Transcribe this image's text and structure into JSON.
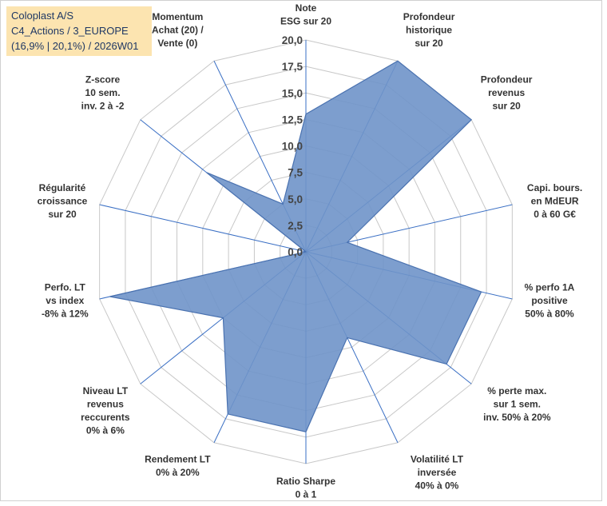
{
  "info": {
    "line1": "Coloplast A/S",
    "line2": "C4_Actions / 3_EUROPE",
    "line3": "(16,9% | 20,1%) / 2026W01"
  },
  "chart_data": {
    "type": "radar",
    "rmin": 0,
    "rmax": 20,
    "ticks": [
      "0,0",
      "2,5",
      "5,0",
      "7,5",
      "10,0",
      "12,5",
      "15,0",
      "17,5",
      "20,0"
    ],
    "categories": [
      [
        "Note",
        "ESG sur 20"
      ],
      [
        "Profondeur",
        "historique",
        "sur 20"
      ],
      [
        "Profondeur",
        "revenus",
        "sur 20"
      ],
      [
        "Capi. bours.",
        "en MdEUR",
        "0 à 60 G€"
      ],
      [
        "% perfo 1A",
        "positive",
        "50% à 80%"
      ],
      [
        "% perte max.",
        "sur 1 sem.",
        "inv. 50% à 20%"
      ],
      [
        "Volatilité LT",
        "inversée",
        "40% à 0%"
      ],
      [
        "Ratio Sharpe",
        "0 à 1"
      ],
      [
        "Rendement LT",
        "0% à 20%"
      ],
      [
        "Niveau LT",
        "revenus",
        "reccurents",
        "0% à 6%"
      ],
      [
        "Perfo. LT",
        "vs index",
        "-8% à 12%"
      ],
      [
        "Régularité",
        "croissance",
        "sur 20"
      ],
      [
        "Z-score",
        "10 sem.",
        "inv. 2 à -2"
      ],
      [
        "Momentum",
        "Achat (20) /",
        "Vente (0)"
      ]
    ],
    "series": [
      {
        "name": "Coloplast A/S",
        "color": "#6f94c9",
        "values": [
          13,
          20,
          20,
          4,
          17,
          17,
          9,
          17,
          17,
          10,
          19,
          0,
          12,
          5
        ]
      }
    ]
  }
}
